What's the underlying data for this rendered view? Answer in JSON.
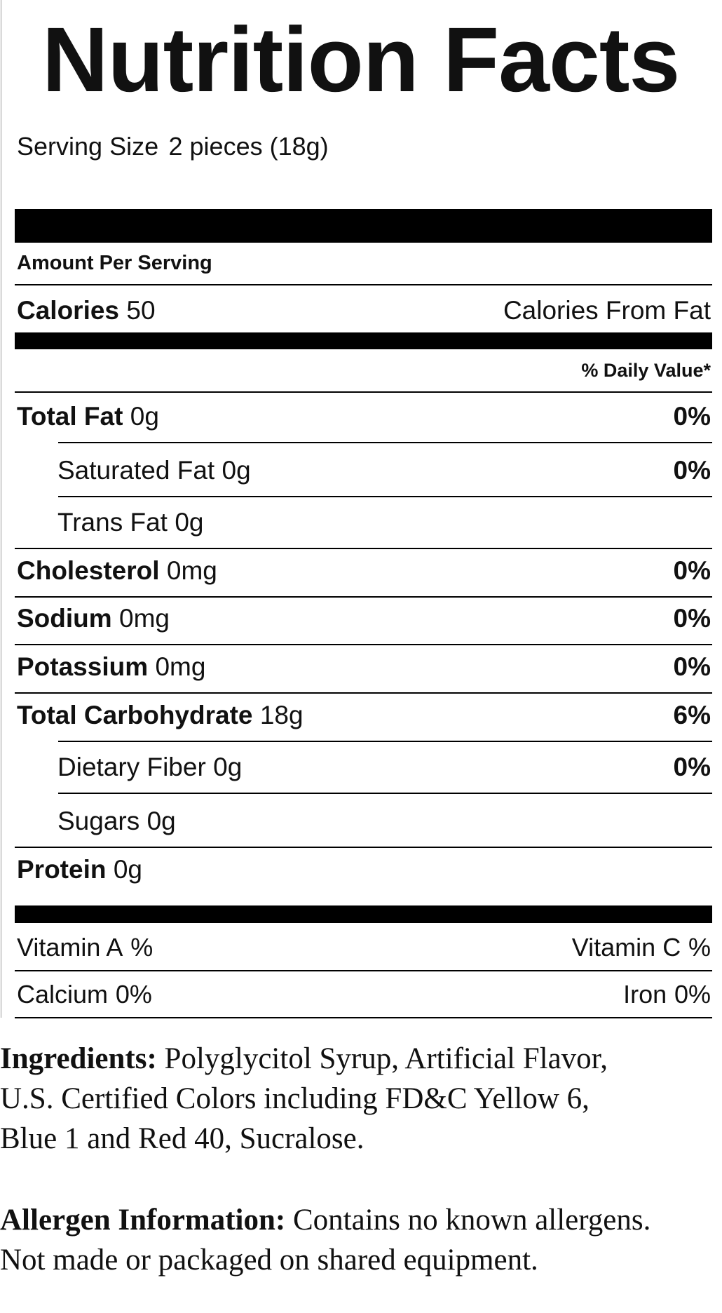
{
  "title": "Nutrition Facts",
  "serving_size": {
    "label": "Serving Size",
    "value": "2 pieces (18g)"
  },
  "amount_per_serving": "Amount Per Serving",
  "calories": {
    "label": "Calories",
    "value": "50"
  },
  "calories_from_fat": "Calories From Fat",
  "daily_value_header": "% Daily Value*",
  "rows": [
    {
      "name": "Total Fat",
      "amount": "0g",
      "dv": "0%"
    },
    {
      "name": "Saturated Fat",
      "amount": "0g",
      "dv": "0%",
      "sub": true
    },
    {
      "name": "Trans Fat",
      "amount": "0g",
      "sub": true
    },
    {
      "name": "Cholesterol",
      "amount": "0mg",
      "dv": "0%"
    },
    {
      "name": "Sodium",
      "amount": "0mg",
      "dv": "0%"
    },
    {
      "name": "Potassium",
      "amount": "0mg",
      "dv": "0%"
    },
    {
      "name": "Total Carbohydrate",
      "amount": "18g",
      "dv": "6%"
    },
    {
      "name": "Dietary Fiber",
      "amount": "0g",
      "dv": "0%",
      "sub": true
    },
    {
      "name": "Sugars",
      "amount": "0g",
      "sub": true
    },
    {
      "name": "Protein",
      "amount": "0g"
    }
  ],
  "vitamins": [
    {
      "left": {
        "name": "Vitamin A",
        "value": "%"
      },
      "right": {
        "name": "Vitamin C",
        "value": "%"
      }
    },
    {
      "left": {
        "name": "Calcium",
        "value": "0%"
      },
      "right": {
        "name": "Iron",
        "value": "0%"
      }
    }
  ],
  "ingredients": {
    "label": "Ingredients:",
    "lines": [
      "Polyglycitol Syrup, Artificial Flavor,",
      "U.S. Certified Colors including FD&C Yellow 6,",
      "Blue 1 and Red 40, Sucralose."
    ]
  },
  "allergen": {
    "label": "Allergen Information:",
    "lines": [
      "Contains no known allergens.",
      "Not made or packaged on shared equipment."
    ]
  }
}
